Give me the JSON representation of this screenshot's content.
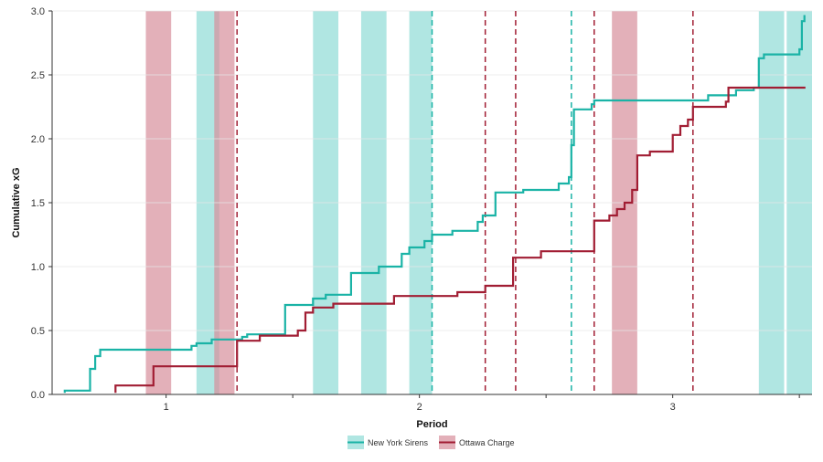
{
  "chart_data": {
    "type": "line",
    "xlabel": "Period",
    "ylabel": "Cumulative xG",
    "xlim": [
      0.55,
      3.55
    ],
    "ylim": [
      0,
      3.0
    ],
    "x_ticks": [
      1,
      2,
      3
    ],
    "x_minor_ticks": [
      1.5,
      2.5,
      3.5
    ],
    "y_ticks": [
      0.0,
      0.5,
      1.0,
      1.5,
      2.0,
      2.5,
      3.0
    ],
    "y_tick_labels": [
      "0.0",
      "0.5",
      "1.0",
      "1.5",
      "2.0",
      "2.5",
      "3.0"
    ],
    "grid": "horizontal",
    "legend_position": "bottom-center",
    "colors": {
      "ny": "#1ab3a6",
      "ott": "#a11d33",
      "ny_band": "#8fdcd6",
      "ott_band": "#d78e9b"
    },
    "series": [
      {
        "name": "New York Sirens",
        "color_key": "ny",
        "points": [
          [
            0.6,
            0.02
          ],
          [
            0.6,
            0.03
          ],
          [
            0.7,
            0.03
          ],
          [
            0.7,
            0.2
          ],
          [
            0.72,
            0.2
          ],
          [
            0.72,
            0.3
          ],
          [
            0.74,
            0.3
          ],
          [
            0.74,
            0.35
          ],
          [
            1.1,
            0.35
          ],
          [
            1.1,
            0.38
          ],
          [
            1.12,
            0.38
          ],
          [
            1.12,
            0.4
          ],
          [
            1.18,
            0.4
          ],
          [
            1.18,
            0.43
          ],
          [
            1.3,
            0.43
          ],
          [
            1.3,
            0.45
          ],
          [
            1.32,
            0.45
          ],
          [
            1.32,
            0.47
          ],
          [
            1.47,
            0.47
          ],
          [
            1.47,
            0.7
          ],
          [
            1.58,
            0.7
          ],
          [
            1.58,
            0.75
          ],
          [
            1.63,
            0.75
          ],
          [
            1.63,
            0.78
          ],
          [
            1.73,
            0.78
          ],
          [
            1.73,
            0.95
          ],
          [
            1.84,
            0.95
          ],
          [
            1.84,
            1.0
          ],
          [
            1.93,
            1.0
          ],
          [
            1.93,
            1.1
          ],
          [
            1.96,
            1.1
          ],
          [
            1.96,
            1.15
          ],
          [
            2.02,
            1.15
          ],
          [
            2.02,
            1.2
          ],
          [
            2.05,
            1.2
          ],
          [
            2.05,
            1.25
          ],
          [
            2.13,
            1.25
          ],
          [
            2.13,
            1.28
          ],
          [
            2.23,
            1.28
          ],
          [
            2.23,
            1.35
          ],
          [
            2.25,
            1.35
          ],
          [
            2.25,
            1.4
          ],
          [
            2.3,
            1.4
          ],
          [
            2.3,
            1.58
          ],
          [
            2.41,
            1.58
          ],
          [
            2.41,
            1.6
          ],
          [
            2.55,
            1.6
          ],
          [
            2.55,
            1.65
          ],
          [
            2.59,
            1.65
          ],
          [
            2.59,
            1.7
          ],
          [
            2.6,
            1.7
          ],
          [
            2.6,
            1.95
          ],
          [
            2.61,
            1.95
          ],
          [
            2.61,
            2.23
          ],
          [
            2.68,
            2.23
          ],
          [
            2.68,
            2.27
          ],
          [
            2.69,
            2.27
          ],
          [
            2.69,
            2.3
          ],
          [
            3.14,
            2.3
          ],
          [
            3.14,
            2.34
          ],
          [
            3.25,
            2.34
          ],
          [
            3.25,
            2.38
          ],
          [
            3.32,
            2.38
          ],
          [
            3.32,
            2.4
          ],
          [
            3.34,
            2.4
          ],
          [
            3.34,
            2.63
          ],
          [
            3.36,
            2.63
          ],
          [
            3.36,
            2.66
          ],
          [
            3.5,
            2.66
          ],
          [
            3.5,
            2.7
          ],
          [
            3.51,
            2.7
          ],
          [
            3.51,
            2.92
          ],
          [
            3.52,
            2.92
          ],
          [
            3.52,
            2.96
          ]
        ]
      },
      {
        "name": "Ottawa Charge",
        "color_key": "ott",
        "points": [
          [
            0.8,
            0.02
          ],
          [
            0.8,
            0.07
          ],
          [
            0.95,
            0.07
          ],
          [
            0.95,
            0.22
          ],
          [
            1.28,
            0.22
          ],
          [
            1.28,
            0.42
          ],
          [
            1.37,
            0.42
          ],
          [
            1.37,
            0.46
          ],
          [
            1.52,
            0.46
          ],
          [
            1.52,
            0.5
          ],
          [
            1.55,
            0.5
          ],
          [
            1.55,
            0.64
          ],
          [
            1.58,
            0.64
          ],
          [
            1.58,
            0.68
          ],
          [
            1.66,
            0.68
          ],
          [
            1.66,
            0.71
          ],
          [
            1.9,
            0.71
          ],
          [
            1.9,
            0.77
          ],
          [
            2.15,
            0.77
          ],
          [
            2.15,
            0.8
          ],
          [
            2.26,
            0.8
          ],
          [
            2.26,
            0.85
          ],
          [
            2.37,
            0.85
          ],
          [
            2.37,
            1.07
          ],
          [
            2.48,
            1.07
          ],
          [
            2.48,
            1.12
          ],
          [
            2.69,
            1.12
          ],
          [
            2.69,
            1.36
          ],
          [
            2.75,
            1.36
          ],
          [
            2.75,
            1.4
          ],
          [
            2.78,
            1.4
          ],
          [
            2.78,
            1.45
          ],
          [
            2.81,
            1.45
          ],
          [
            2.81,
            1.5
          ],
          [
            2.84,
            1.5
          ],
          [
            2.84,
            1.6
          ],
          [
            2.86,
            1.6
          ],
          [
            2.86,
            1.87
          ],
          [
            2.91,
            1.87
          ],
          [
            2.91,
            1.9
          ],
          [
            3.0,
            1.9
          ],
          [
            3.0,
            2.03
          ],
          [
            3.03,
            2.03
          ],
          [
            3.03,
            2.1
          ],
          [
            3.06,
            2.1
          ],
          [
            3.06,
            2.15
          ],
          [
            3.08,
            2.15
          ],
          [
            3.08,
            2.25
          ],
          [
            3.21,
            2.25
          ],
          [
            3.21,
            2.29
          ],
          [
            3.22,
            2.29
          ],
          [
            3.22,
            2.4
          ],
          [
            3.52,
            2.4
          ]
        ]
      }
    ],
    "powerplay_bands": [
      {
        "team": "Ottawa Charge",
        "color_key": "ott_band",
        "x": [
          0.92,
          1.02
        ]
      },
      {
        "team": "New York Sirens",
        "color_key": "ny_band",
        "x": [
          1.12,
          1.21
        ]
      },
      {
        "team": "Ottawa Charge",
        "color_key": "ott_band",
        "x": [
          1.19,
          1.27
        ]
      },
      {
        "team": "New York Sirens",
        "color_key": "ny_band",
        "x": [
          1.58,
          1.68
        ]
      },
      {
        "team": "New York Sirens",
        "color_key": "ny_band",
        "x": [
          1.77,
          1.87
        ]
      },
      {
        "team": "New York Sirens",
        "color_key": "ny_band",
        "x": [
          1.96,
          2.05
        ]
      },
      {
        "team": "Ottawa Charge",
        "color_key": "ott_band",
        "x": [
          2.76,
          2.86
        ]
      },
      {
        "team": "New York Sirens",
        "color_key": "ny_band",
        "x": [
          3.34,
          3.44
        ]
      },
      {
        "team": "New York Sirens",
        "color_key": "ny_band",
        "x": [
          3.45,
          3.55
        ]
      }
    ],
    "goal_lines": [
      {
        "team": "Ottawa Charge",
        "color_key": "ott",
        "x": 1.28
      },
      {
        "team": "New York Sirens",
        "color_key": "ny",
        "x": 2.05
      },
      {
        "team": "Ottawa Charge",
        "color_key": "ott",
        "x": 2.26
      },
      {
        "team": "Ottawa Charge",
        "color_key": "ott",
        "x": 2.38
      },
      {
        "team": "New York Sirens",
        "color_key": "ny",
        "x": 2.6
      },
      {
        "team": "Ottawa Charge",
        "color_key": "ott",
        "x": 2.69
      },
      {
        "team": "Ottawa Charge",
        "color_key": "ott",
        "x": 3.08
      }
    ],
    "legend": [
      {
        "label": "New York Sirens",
        "line_key": "ny",
        "fill_key": "ny_band"
      },
      {
        "label": "Ottawa Charge",
        "line_key": "ott",
        "fill_key": "ott_band"
      }
    ]
  }
}
